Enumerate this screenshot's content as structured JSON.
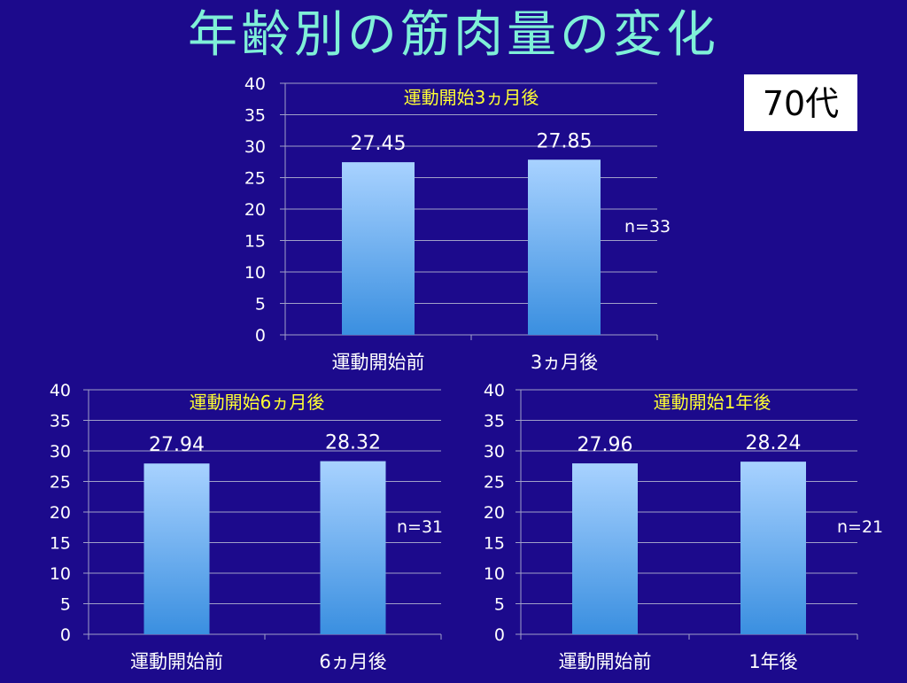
{
  "title": "年齢別の筋肉量の変化",
  "age_group": "70代",
  "colors": {
    "background": "#1c0a8c",
    "title": "#7ff0d8",
    "subtitle": "#ffff33",
    "bar_top": "#a8d2ff",
    "bar_bottom": "#3a8fe0",
    "gridline": "#a0a0c8"
  },
  "chart_data": [
    {
      "type": "bar",
      "title": "運動開始3ヵ月後",
      "categories": [
        "運動開始前",
        "3ヵ月後"
      ],
      "values": [
        27.45,
        27.85
      ],
      "value_labels": [
        "27.45",
        "27.85"
      ],
      "y_ticks": [
        "0",
        "5",
        "10",
        "15",
        "20",
        "25",
        "30",
        "35",
        "40"
      ],
      "ylim": [
        0,
        40
      ],
      "grid": true,
      "annotation": "n=33"
    },
    {
      "type": "bar",
      "title": "運動開始6ヵ月後",
      "categories": [
        "運動開始前",
        "6ヵ月後"
      ],
      "values": [
        27.94,
        28.32
      ],
      "value_labels": [
        "27.94",
        "28.32"
      ],
      "y_ticks": [
        "0",
        "5",
        "10",
        "15",
        "20",
        "25",
        "30",
        "35",
        "40"
      ],
      "ylim": [
        0,
        40
      ],
      "grid": true,
      "annotation": "n=31"
    },
    {
      "type": "bar",
      "title": "運動開始1年後",
      "categories": [
        "運動開始前",
        "1年後"
      ],
      "values": [
        27.96,
        28.24
      ],
      "value_labels": [
        "27.96",
        "28.24"
      ],
      "y_ticks": [
        "0",
        "5",
        "10",
        "15",
        "20",
        "25",
        "30",
        "35",
        "40"
      ],
      "ylim": [
        0,
        40
      ],
      "grid": true,
      "annotation": "n=21"
    }
  ]
}
